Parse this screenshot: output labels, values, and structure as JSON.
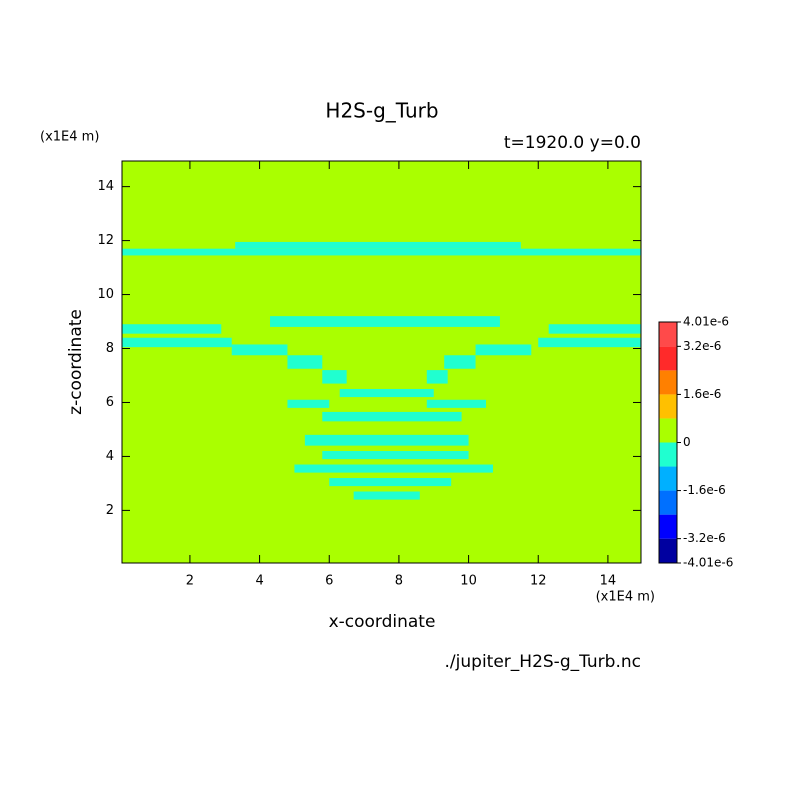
{
  "chart_data": {
    "type": "contour",
    "title": "H2S-g_Turb",
    "subtitle": "t=1920.0 y=0.0",
    "x_label": "x-coordinate",
    "y_label": "z-coordinate",
    "x_unit": "(x1E4 m)",
    "y_unit": "(x1E4 m)",
    "source": "./jupiter_H2S-g_Turb.nc",
    "xlim": [
      0.05,
      14.95
    ],
    "ylim": [
      0.05,
      14.95
    ],
    "xticks": [
      2,
      4,
      6,
      8,
      10,
      12,
      14
    ],
    "yticks": [
      2,
      4,
      6,
      8,
      10,
      12,
      14
    ],
    "colorbar": {
      "levels": [
        -4.01e-06,
        -3.2e-06,
        -2.4e-06,
        -1.6e-06,
        -8e-07,
        0,
        8e-07,
        1.6e-06,
        2.4e-06,
        3.2e-06,
        4.01e-06
      ],
      "colors": [
        "#0000a0",
        "#0000ff",
        "#0070ff",
        "#00b0ff",
        "#20ffd0",
        "#aaff00",
        "#ffc000",
        "#ff8000",
        "#ff2a2a",
        "#ff4a4a"
      ],
      "ticks": [
        {
          "value": -4.01e-06,
          "label": "-4.01e-6"
        },
        {
          "value": -3.2e-06,
          "label": "-3.2e-6"
        },
        {
          "value": -1.6e-06,
          "label": "-1.6e-6"
        },
        0,
        {
          "value": 1.6e-06,
          "label": "1.6e-6"
        },
        {
          "value": 3.2e-06,
          "label": "3.2e-6"
        },
        {
          "value": 4.01e-06,
          "label": "4.01e-6"
        }
      ]
    },
    "regions": [
      {
        "x": [
          0.05,
          14.95
        ],
        "z": [
          0.05,
          14.95
        ],
        "value": 4e-07
      },
      {
        "x": [
          0.05,
          14.95
        ],
        "z": [
          11.45,
          11.7
        ],
        "value": -4e-07
      },
      {
        "x": [
          3.3,
          11.5
        ],
        "z": [
          11.7,
          11.95
        ],
        "value": -4e-07
      },
      {
        "x": [
          4.3,
          10.9
        ],
        "z": [
          8.8,
          9.2
        ],
        "value": -4e-07
      },
      {
        "x": [
          0.05,
          2.9
        ],
        "z": [
          8.55,
          8.9
        ],
        "value": -4e-07
      },
      {
        "x": [
          12.3,
          14.95
        ],
        "z": [
          8.55,
          8.9
        ],
        "value": -4e-07
      },
      {
        "x": [
          0.05,
          3.2
        ],
        "z": [
          8.05,
          8.4
        ],
        "value": -4e-07
      },
      {
        "x": [
          12,
          14.95
        ],
        "z": [
          8.05,
          8.4
        ],
        "value": -4e-07
      },
      {
        "x": [
          3.2,
          4.8
        ],
        "z": [
          7.75,
          8.15
        ],
        "value": -4e-07
      },
      {
        "x": [
          4.8,
          5.8
        ],
        "z": [
          7.25,
          7.75
        ],
        "value": -4e-07
      },
      {
        "x": [
          5.8,
          6.5
        ],
        "z": [
          6.7,
          7.2
        ],
        "value": -4e-07
      },
      {
        "x": [
          10.2,
          11.8
        ],
        "z": [
          7.75,
          8.15
        ],
        "value": -4e-07
      },
      {
        "x": [
          9.3,
          10.2
        ],
        "z": [
          7.25,
          7.75
        ],
        "value": -4e-07
      },
      {
        "x": [
          8.8,
          9.4
        ],
        "z": [
          6.7,
          7.2
        ],
        "value": -4e-07
      },
      {
        "x": [
          4.8,
          6
        ],
        "z": [
          5.8,
          6.1
        ],
        "value": -4e-07
      },
      {
        "x": [
          8.8,
          10.5
        ],
        "z": [
          5.8,
          6.1
        ],
        "value": -4e-07
      },
      {
        "x": [
          6.3,
          9
        ],
        "z": [
          6.2,
          6.5
        ],
        "value": -4e-07
      },
      {
        "x": [
          5.8,
          9.8
        ],
        "z": [
          5.3,
          5.65
        ],
        "value": -4e-07
      },
      {
        "x": [
          5.3,
          10
        ],
        "z": [
          4.4,
          4.8
        ],
        "value": -4e-07
      },
      {
        "x": [
          5.8,
          10
        ],
        "z": [
          3.9,
          4.2
        ],
        "value": -4e-07
      },
      {
        "x": [
          5,
          10.7
        ],
        "z": [
          3.4,
          3.7
        ],
        "value": -4e-07
      },
      {
        "x": [
          6,
          9.5
        ],
        "z": [
          2.9,
          3.2
        ],
        "value": -4e-07
      },
      {
        "x": [
          6.7,
          8.6
        ],
        "z": [
          2.4,
          2.7
        ],
        "value": -4e-07
      }
    ]
  }
}
